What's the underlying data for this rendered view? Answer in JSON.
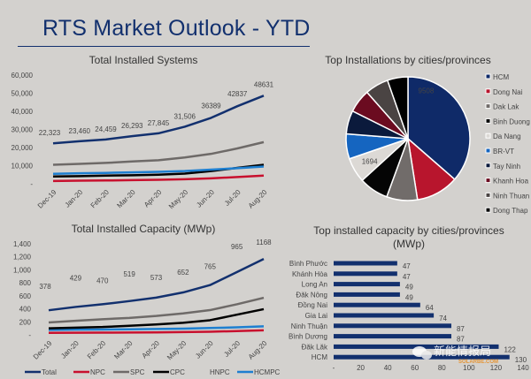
{
  "page": {
    "title": "RTS Market Outlook - YTD"
  },
  "chart_data": [
    {
      "id": "systems",
      "type": "line",
      "title": "Total Installed Systems",
      "categories": [
        "Dec-19",
        "Jan-20",
        "Feb-20",
        "Mar-20",
        "Apr-20",
        "May-20",
        "Jun-20",
        "Jul-20",
        "Aug-20"
      ],
      "ylim": [
        0,
        60000
      ],
      "yticks": [
        0,
        10000,
        20000,
        30000,
        40000,
        50000,
        60000
      ],
      "ytick_labels": [
        "-",
        "10,000",
        "20,000",
        "30,000",
        "40,000",
        "50,000",
        "60,000"
      ],
      "grid": false,
      "series": [
        {
          "name": "Total",
          "color": "#12306e",
          "values": [
            22323,
            23460,
            24459,
            26293,
            27845,
            31506,
            36389,
            42837,
            48631
          ],
          "labels": [
            "22,323",
            "23,460",
            "24,459",
            "26,293",
            "27,845",
            "31,506",
            "36389",
            "42837",
            "48631"
          ]
        },
        {
          "name": "SPC",
          "color": "#6e6a68",
          "values": [
            10500,
            11000,
            11500,
            12300,
            13000,
            14500,
            16500,
            19500,
            23000
          ]
        },
        {
          "name": "HCMPC",
          "color": "#1e7fd0",
          "values": [
            5500,
            5800,
            6000,
            6300,
            6600,
            7000,
            7800,
            8600,
            9500
          ]
        },
        {
          "name": "CPC",
          "color": "#000000",
          "values": [
            4000,
            4200,
            4500,
            4700,
            5000,
            5600,
            7000,
            8800,
            10500
          ]
        },
        {
          "name": "NPC",
          "color": "#c8102e",
          "values": [
            1500,
            1700,
            1800,
            2000,
            2200,
            2500,
            3000,
            3700,
            4500
          ]
        }
      ]
    },
    {
      "id": "capacity",
      "type": "line",
      "title": "Total Installed Capacity (MWp)",
      "categories": [
        "Dec-19",
        "Jan-20",
        "Feb-20",
        "Mar-20",
        "Apr-20",
        "May-20",
        "Jun-20",
        "Jul-20",
        "Aug-20"
      ],
      "ylim": [
        0,
        1400
      ],
      "yticks": [
        0,
        200,
        400,
        600,
        800,
        1000,
        1200,
        1400
      ],
      "ytick_labels": [
        "-",
        "200",
        "400",
        "600",
        "800",
        "1,000",
        "1,200",
        "1,400"
      ],
      "grid": false,
      "legend": "bottom",
      "legend_entries": [
        {
          "name": "Total",
          "color": "#12306e"
        },
        {
          "name": "NPC",
          "color": "#c8102e"
        },
        {
          "name": "SPC",
          "color": "#6e6a68"
        },
        {
          "name": "CPC",
          "color": "#000000"
        },
        {
          "name": "HNPC",
          "color": "#d3d1ce"
        },
        {
          "name": "HCMPC",
          "color": "#1e7fd0"
        }
      ],
      "series": [
        {
          "name": "Total",
          "color": "#12306e",
          "values": [
            378,
            429,
            470,
            519,
            573,
            652,
            765,
            965,
            1168
          ],
          "labels": [
            "378",
            "429",
            "470",
            "519",
            "573",
            "652",
            "765",
            "965",
            "1168"
          ]
        },
        {
          "name": "SPC",
          "color": "#6e6a68",
          "values": [
            190,
            215,
            240,
            260,
            290,
            330,
            380,
            470,
            570
          ]
        },
        {
          "name": "CPC",
          "color": "#000000",
          "values": [
            100,
            110,
            120,
            140,
            160,
            185,
            225,
            310,
            395
          ]
        },
        {
          "name": "HCMPC",
          "color": "#1e7fd0",
          "values": [
            75,
            80,
            82,
            85,
            90,
            95,
            105,
            115,
            130
          ]
        },
        {
          "name": "NPC",
          "color": "#c8102e",
          "values": [
            30,
            32,
            34,
            36,
            38,
            42,
            48,
            58,
            70
          ]
        }
      ]
    },
    {
      "id": "pie",
      "type": "pie",
      "title": "Top Installations by cities/provinces",
      "legend": "right",
      "slices": [
        {
          "label": "HCM",
          "value": 9508,
          "color": "#0f2a68",
          "data_label": "9508"
        },
        {
          "label": "Dong Nai",
          "value": 2900,
          "color": "#b8152d"
        },
        {
          "label": "Dak Lak",
          "value": 2100,
          "color": "#716c6a"
        },
        {
          "label": "Binh Duong",
          "value": 2000,
          "color": "#050505"
        },
        {
          "label": "Da Nang",
          "value": 1694,
          "color": "#dcd9d5",
          "data_label": "1694"
        },
        {
          "label": "BR-VT",
          "value": 1700,
          "color": "#1565c0"
        },
        {
          "label": "Tay Ninh",
          "value": 1600,
          "color": "#0b1a3c"
        },
        {
          "label": "Khanh Hoa",
          "value": 1600,
          "color": "#6b0b20"
        },
        {
          "label": "Ninh Thuan",
          "value": 1600,
          "color": "#4a4443"
        },
        {
          "label": "Dong Thap",
          "value": 1400,
          "color": "#000000"
        }
      ]
    },
    {
      "id": "bars",
      "type": "bar",
      "orientation": "horizontal",
      "title": "Top installed capacity by cities/provinces",
      "title_line2": "(MWp)",
      "color": "#12306e",
      "categories": [
        "Bình Phước",
        "Khánh Hòa",
        "Long An",
        "Đăk Nông",
        "Đồng Nai",
        "Gia Lai",
        "Ninh Thuận",
        "Bình Dương",
        "Đăk Lăk",
        "HCM"
      ],
      "values": [
        47,
        47,
        49,
        49,
        64,
        74,
        87,
        87,
        122,
        130
      ],
      "xlim": [
        0,
        140
      ],
      "xticks": [
        0,
        20,
        40,
        60,
        80,
        100,
        120,
        140
      ],
      "xtick_labels": [
        "-",
        "20",
        "40",
        "60",
        "80",
        "100",
        "120",
        "140"
      ]
    }
  ],
  "watermark": {
    "text": "新能情报局",
    "sub": "SOLARBE.COM"
  }
}
